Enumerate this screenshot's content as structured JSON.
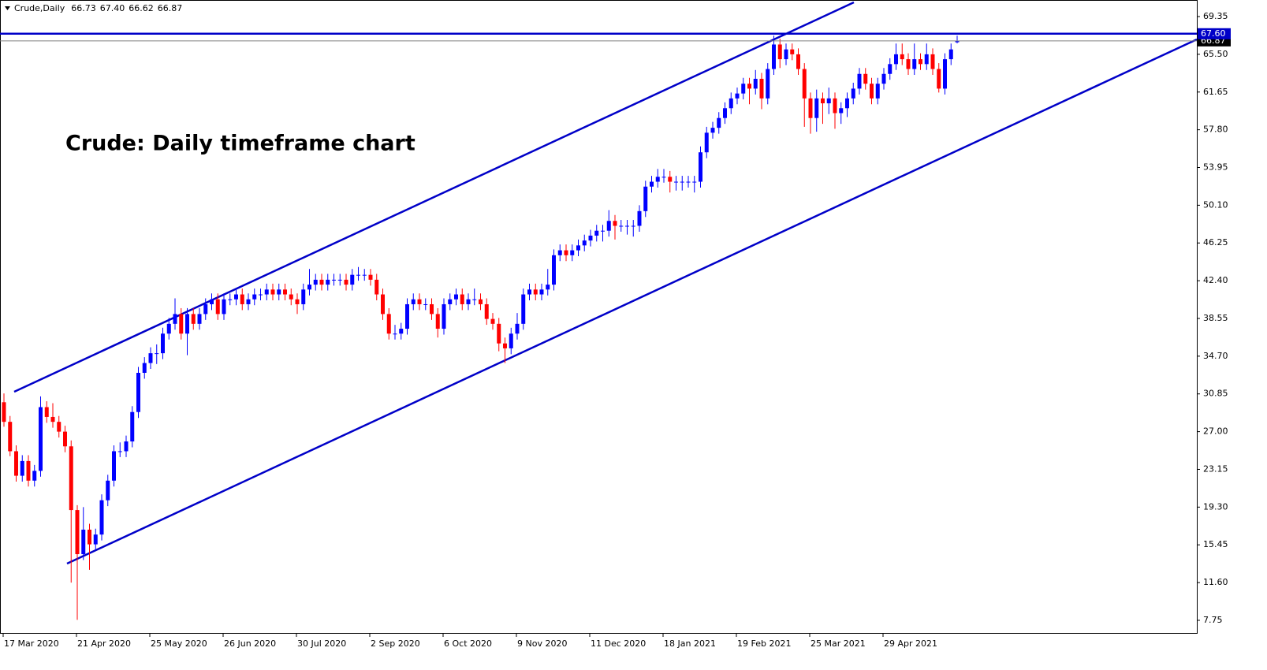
{
  "chart_data": {
    "type": "candlestick",
    "symbol": "Crude,Daily",
    "header_ohlc": [
      "66.73",
      "67.40",
      "66.62",
      "66.87"
    ],
    "title": "Crude: Daily timeframe chart",
    "up_color": "#0000ff",
    "down_color": "#ff0000",
    "grid": false,
    "ylim": [
      6.46,
      70.96
    ],
    "yticks": [
      {
        "value": 7.75,
        "label": "7.75"
      },
      {
        "value": 11.6,
        "label": "11.60"
      },
      {
        "value": 15.45,
        "label": "15.45"
      },
      {
        "value": 19.3,
        "label": "19.30"
      },
      {
        "value": 23.15,
        "label": "23.15"
      },
      {
        "value": 27,
        "label": "27.00"
      },
      {
        "value": 30.85,
        "label": "30.85"
      },
      {
        "value": 34.7,
        "label": "34.70"
      },
      {
        "value": 38.55,
        "label": "38.55"
      },
      {
        "value": 42.4,
        "label": "42.40"
      },
      {
        "value": 46.25,
        "label": "46.25"
      },
      {
        "value": 50.1,
        "label": "50.10"
      },
      {
        "value": 53.95,
        "label": "53.95"
      },
      {
        "value": 57.8,
        "label": "57.80"
      },
      {
        "value": 61.65,
        "label": "61.65"
      },
      {
        "value": 65.5,
        "label": "65.50"
      },
      {
        "value": 69.35,
        "label": "69.35"
      }
    ],
    "hlines": [
      {
        "value": 66.87,
        "label": "66.87",
        "color": "#808080",
        "label_color": "#000000"
      },
      {
        "value": 67.6,
        "label": "67.60",
        "color": "#0000c8",
        "label_color": "#0000c8"
      }
    ],
    "categories": [
      "17 Mar 2020",
      null,
      null,
      null,
      null,
      null,
      null,
      null,
      null,
      null,
      null,
      null,
      "21 Apr 2020",
      null,
      null,
      null,
      null,
      null,
      null,
      null,
      null,
      null,
      null,
      null,
      "25 May 2020",
      null,
      null,
      null,
      null,
      null,
      null,
      null,
      null,
      null,
      null,
      null,
      "26 Jun 2020",
      null,
      null,
      null,
      null,
      null,
      null,
      null,
      null,
      null,
      null,
      null,
      "30 Jul 2020",
      null,
      null,
      null,
      null,
      null,
      null,
      null,
      null,
      null,
      null,
      null,
      "2 Sep 2020",
      null,
      null,
      null,
      null,
      null,
      null,
      null,
      null,
      null,
      null,
      null,
      "6 Oct 2020",
      null,
      null,
      null,
      null,
      null,
      null,
      null,
      null,
      null,
      null,
      null,
      "9 Nov 2020",
      null,
      null,
      null,
      null,
      null,
      null,
      null,
      null,
      null,
      null,
      null,
      "11 Dec 2020",
      null,
      null,
      null,
      null,
      null,
      null,
      null,
      null,
      null,
      null,
      null,
      "18 Jan 2021",
      null,
      null,
      null,
      null,
      null,
      null,
      null,
      null,
      null,
      null,
      null,
      "19 Feb 2021",
      null,
      null,
      null,
      null,
      null,
      null,
      null,
      null,
      null,
      null,
      null,
      "25 Mar 2021",
      null,
      null,
      null,
      null,
      null,
      null,
      null,
      null,
      null,
      null,
      null,
      "29 Apr 2021",
      null,
      null,
      null,
      null,
      null,
      null,
      null,
      null,
      null,
      null,
      null,
      null
    ],
    "candles": [
      [
        30,
        30.9,
        27.5,
        28
      ],
      [
        28,
        28.6,
        24.5,
        25
      ],
      [
        25,
        25.6,
        21.9,
        22.5
      ],
      [
        22.5,
        24.6,
        21.9,
        24
      ],
      [
        24,
        24.6,
        21.4,
        22
      ],
      [
        22,
        23.6,
        21.4,
        23
      ],
      [
        23,
        30.6,
        22.4,
        29.5
      ],
      [
        29.5,
        30.1,
        27.9,
        28.5
      ],
      [
        28.5,
        29.9,
        27.4,
        28
      ],
      [
        28,
        28.6,
        26.4,
        27
      ],
      [
        27,
        27.6,
        24.9,
        25.5
      ],
      [
        25.5,
        26.1,
        11.6,
        19
      ],
      [
        19,
        19.5,
        7.8,
        14.5
      ],
      [
        14.5,
        19.3,
        13.9,
        17
      ],
      [
        17,
        17.6,
        12.9,
        15.5
      ],
      [
        15.5,
        17.1,
        14.9,
        16.5
      ],
      [
        16.5,
        20.6,
        15.9,
        20
      ],
      [
        20,
        22.6,
        19.4,
        22
      ],
      [
        22,
        25.6,
        21.4,
        25
      ],
      [
        25,
        25.9,
        24.4,
        25
      ],
      [
        25,
        26.6,
        24.4,
        26
      ],
      [
        26,
        29.6,
        25.4,
        29
      ],
      [
        29,
        33.6,
        28.4,
        33
      ],
      [
        33,
        34.6,
        32.4,
        34
      ],
      [
        34,
        35.6,
        33.4,
        35
      ],
      [
        35,
        35.9,
        33.9,
        35
      ],
      [
        35,
        37.6,
        34.4,
        37
      ],
      [
        37,
        38.6,
        36.4,
        38
      ],
      [
        38,
        40.6,
        37.4,
        39
      ],
      [
        39,
        39.6,
        36.4,
        37
      ],
      [
        37,
        39.6,
        34.8,
        39
      ],
      [
        39,
        39.6,
        37.4,
        38
      ],
      [
        38,
        39.6,
        37.4,
        39
      ],
      [
        39,
        40.6,
        38.4,
        40
      ],
      [
        40,
        41.1,
        39.4,
        40.5
      ],
      [
        40.5,
        41.1,
        38.4,
        39
      ],
      [
        39,
        41.1,
        38.4,
        40.5
      ],
      [
        40.5,
        41.1,
        39.9,
        40.5
      ],
      [
        40.5,
        41.6,
        39.9,
        41
      ],
      [
        41,
        41.6,
        39.4,
        40
      ],
      [
        40,
        41.1,
        39.4,
        40.5
      ],
      [
        40.5,
        41.6,
        39.9,
        41
      ],
      [
        41,
        41.6,
        40.4,
        41
      ],
      [
        41,
        42.1,
        40.4,
        41.5
      ],
      [
        41.5,
        42.1,
        40.4,
        41
      ],
      [
        41,
        42.1,
        40.4,
        41.5
      ],
      [
        41.5,
        42.1,
        40.4,
        41
      ],
      [
        41,
        41.6,
        39.9,
        40.5
      ],
      [
        40.5,
        41.1,
        39,
        40
      ],
      [
        40,
        42.1,
        39.4,
        41.5
      ],
      [
        41.5,
        43.6,
        40.9,
        42
      ],
      [
        42,
        43.1,
        41.4,
        42.5
      ],
      [
        42.5,
        43.1,
        41.4,
        42
      ],
      [
        42,
        43.1,
        41.4,
        42.5
      ],
      [
        42.5,
        43.1,
        41.9,
        42.5
      ],
      [
        42.5,
        43.1,
        41.9,
        42.5
      ],
      [
        42.5,
        43.1,
        41.4,
        42
      ],
      [
        42,
        43.6,
        41.4,
        43
      ],
      [
        43,
        43.8,
        42.4,
        43
      ],
      [
        43,
        43.6,
        42.4,
        43
      ],
      [
        43,
        43.6,
        41.9,
        42.5
      ],
      [
        42.5,
        43.1,
        40.4,
        41
      ],
      [
        41,
        41.6,
        38.4,
        39
      ],
      [
        39,
        39.6,
        36.4,
        37
      ],
      [
        37,
        37.9,
        36.4,
        37
      ],
      [
        37,
        38.1,
        36.4,
        37.5
      ],
      [
        37.5,
        40.6,
        36.9,
        40
      ],
      [
        40,
        41.1,
        39.4,
        40.5
      ],
      [
        40.5,
        41.1,
        39.4,
        40
      ],
      [
        40,
        40.6,
        39.4,
        40
      ],
      [
        40,
        40.6,
        38.4,
        39
      ],
      [
        39,
        39.6,
        36.6,
        37.5
      ],
      [
        37.5,
        40.6,
        36.9,
        40
      ],
      [
        40,
        41.1,
        39.4,
        40.5
      ],
      [
        40.5,
        41.6,
        39.9,
        41
      ],
      [
        41,
        41.6,
        39.4,
        40
      ],
      [
        40,
        41.1,
        39.4,
        40.5
      ],
      [
        40.5,
        41.6,
        39.9,
        40.5
      ],
      [
        40.5,
        41.1,
        39.4,
        40
      ],
      [
        40,
        40.6,
        37.9,
        38.5
      ],
      [
        38.5,
        39.1,
        37.4,
        38
      ],
      [
        38,
        38.6,
        35.2,
        36
      ],
      [
        36,
        36.6,
        34,
        35.5
      ],
      [
        35.5,
        37.6,
        34.9,
        37
      ],
      [
        37,
        39.1,
        36.4,
        38
      ],
      [
        38,
        41.6,
        37.4,
        41
      ],
      [
        41,
        42.1,
        40.4,
        41.5
      ],
      [
        41.5,
        42.1,
        40.4,
        41
      ],
      [
        41,
        42.1,
        40.4,
        41.5
      ],
      [
        41.5,
        43.6,
        40.9,
        42
      ],
      [
        42,
        45.6,
        41.4,
        45
      ],
      [
        45,
        46.1,
        44.4,
        45.5
      ],
      [
        45.5,
        46.1,
        44.4,
        45
      ],
      [
        45,
        46.1,
        44.4,
        45.5
      ],
      [
        45.5,
        46.6,
        44.9,
        46
      ],
      [
        46,
        47.1,
        45.4,
        46.5
      ],
      [
        46.5,
        47.6,
        45.9,
        47
      ],
      [
        47,
        48.1,
        46.4,
        47.5
      ],
      [
        47.5,
        48.1,
        46.4,
        47.5
      ],
      [
        47.5,
        49.6,
        46.9,
        48.5
      ],
      [
        48.5,
        49.1,
        46.6,
        48
      ],
      [
        48,
        48.6,
        47.4,
        48
      ],
      [
        48,
        48.6,
        47.1,
        48
      ],
      [
        48,
        48.6,
        46.9,
        48
      ],
      [
        48,
        50.1,
        47.4,
        49.5
      ],
      [
        49.5,
        52.6,
        48.9,
        52
      ],
      [
        52,
        53.1,
        51.4,
        52.5
      ],
      [
        52.5,
        53.8,
        51.9,
        53
      ],
      [
        53,
        53.8,
        52.4,
        53
      ],
      [
        53,
        53.6,
        51.4,
        52.5
      ],
      [
        52.5,
        53.1,
        51.6,
        52.5
      ],
      [
        52.5,
        53.1,
        51.6,
        52.5
      ],
      [
        52.5,
        53.1,
        51.9,
        52.5
      ],
      [
        52.5,
        53.1,
        51.4,
        52.5
      ],
      [
        52.5,
        56.1,
        51.9,
        55.5
      ],
      [
        55.5,
        58.1,
        54.9,
        57.5
      ],
      [
        57.5,
        58.6,
        56.9,
        58
      ],
      [
        58,
        59.6,
        57.4,
        59
      ],
      [
        59,
        60.6,
        58.4,
        60
      ],
      [
        60,
        61.6,
        59.4,
        61
      ],
      [
        61,
        62.1,
        60.4,
        61.5
      ],
      [
        61.5,
        63.1,
        60.9,
        62.5
      ],
      [
        62.5,
        63.1,
        60.4,
        62
      ],
      [
        62,
        63.9,
        61.4,
        63
      ],
      [
        63,
        63.6,
        59.9,
        61
      ],
      [
        61,
        64.6,
        60.4,
        64
      ],
      [
        64,
        67.4,
        63.4,
        66.5
      ],
      [
        66.5,
        67.1,
        64.1,
        65
      ],
      [
        65,
        66.6,
        64.4,
        66
      ],
      [
        66,
        66.6,
        64.9,
        65.5
      ],
      [
        65.5,
        66.1,
        63.4,
        64
      ],
      [
        64,
        64.6,
        58.1,
        61
      ],
      [
        61,
        61.6,
        57.4,
        59
      ],
      [
        59,
        61.9,
        57.6,
        61
      ],
      [
        61,
        61.6,
        58.4,
        60.5
      ],
      [
        60.5,
        62.1,
        59.4,
        61
      ],
      [
        61,
        61.6,
        57.9,
        59.5
      ],
      [
        59.5,
        60.6,
        58.4,
        60
      ],
      [
        60,
        61.6,
        59.1,
        61
      ],
      [
        61,
        62.6,
        60.4,
        62
      ],
      [
        62,
        64.1,
        61.4,
        63.5
      ],
      [
        63.5,
        64.1,
        61.9,
        62.5
      ],
      [
        62.5,
        63.1,
        60.4,
        61
      ],
      [
        61,
        63.1,
        60.4,
        62.5
      ],
      [
        62.5,
        64.1,
        61.9,
        63.5
      ],
      [
        63.5,
        65.1,
        62.9,
        64.5
      ],
      [
        64.5,
        66.6,
        63.9,
        65.5
      ],
      [
        65.5,
        66.6,
        64.4,
        65
      ],
      [
        65,
        65.6,
        63.4,
        64
      ],
      [
        64,
        66.6,
        63.4,
        65
      ],
      [
        65,
        65.6,
        63.9,
        64.5
      ],
      [
        64.5,
        66.6,
        63.9,
        65.5
      ],
      [
        65.5,
        66.1,
        63.4,
        64
      ],
      [
        64,
        64.6,
        61.6,
        62
      ],
      [
        62,
        65.6,
        61.4,
        65
      ],
      [
        65,
        66.6,
        64.4,
        66
      ],
      [
        66.73,
        67.4,
        66.62,
        66.87
      ]
    ]
  }
}
